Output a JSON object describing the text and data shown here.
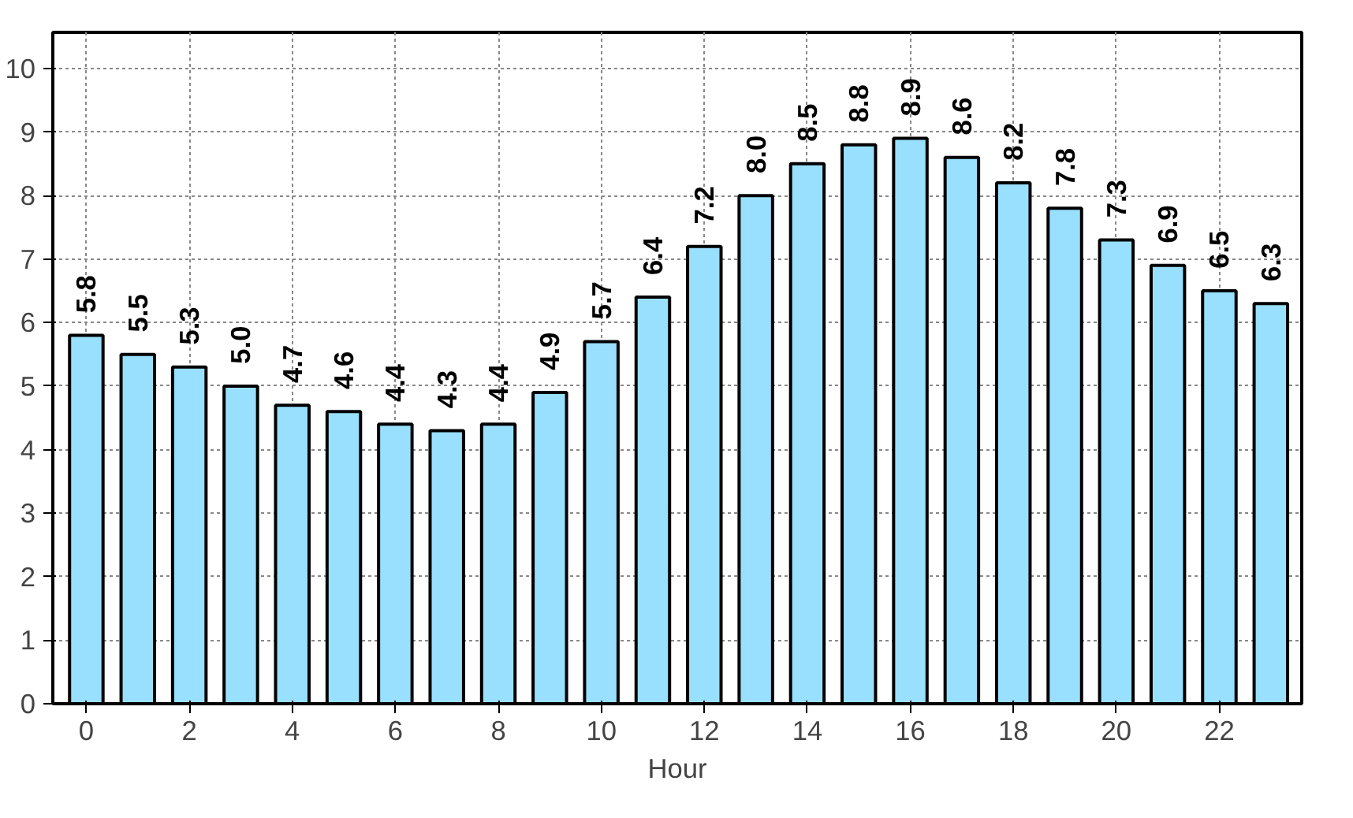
{
  "chart_data": {
    "type": "bar",
    "xlabel": "Hour",
    "x": [
      0,
      1,
      2,
      3,
      4,
      5,
      6,
      7,
      8,
      9,
      10,
      11,
      12,
      13,
      14,
      15,
      16,
      17,
      18,
      19,
      20,
      21,
      22,
      23
    ],
    "values": [
      5.8,
      5.5,
      5.3,
      5.0,
      4.7,
      4.6,
      4.4,
      4.3,
      4.4,
      4.9,
      5.7,
      6.4,
      7.2,
      8.0,
      8.5,
      8.8,
      8.9,
      8.6,
      8.2,
      7.8,
      7.3,
      6.9,
      6.5,
      6.3
    ],
    "color": "#99e0ff",
    "xlim": [
      -0.65,
      23.6
    ],
    "xticks": [
      0,
      2,
      4,
      6,
      8,
      10,
      12,
      14,
      16,
      18,
      20,
      22
    ],
    "ylim": [
      0,
      10.57
    ],
    "yticks": [
      0,
      1,
      2,
      3,
      4,
      5,
      6,
      7,
      8,
      9,
      10
    ],
    "grid": true,
    "value_labels": [
      "5.8",
      "5.5",
      "5.3",
      "5.0",
      "4.7",
      "4.6",
      "4.4",
      "4.3",
      "4.4",
      "4.9",
      "5.7",
      "6.4",
      "7.2",
      "8.0",
      "8.5",
      "8.8",
      "8.9",
      "8.6",
      "8.2",
      "7.8",
      "7.3",
      "6.9",
      "6.5",
      "6.3"
    ]
  }
}
